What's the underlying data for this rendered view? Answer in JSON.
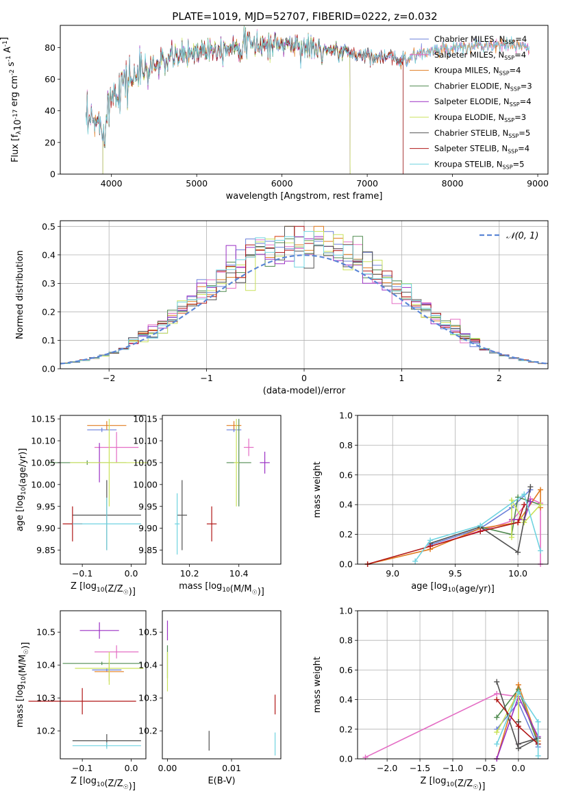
{
  "figure_title": "PLATE=1019, MJD=52707, FIBERID=0222, z=0.032",
  "colors": {
    "Chabrier MILES": "#6a7fd9",
    "Salpeter MILES": "#e46cc4",
    "Kroupa MILES": "#e07b1f",
    "Chabrier ELODIE": "#4f8a4f",
    "Salpeter ELODIE": "#9a2fc4",
    "Kroupa ELODIE": "#c9e25a",
    "Chabrier STELIB": "#505050",
    "Salpeter STELIB": "#b01515",
    "Kroupa STELIB": "#6fd3e0",
    "gauss": "#5b86d6"
  },
  "chart_data": [
    {
      "id": "spectrum",
      "type": "line",
      "xlabel": "wavelength [Angstrom, rest frame]",
      "ylabel": "Flux [f_λ10^-17 erg cm^-2 s^-1 A^-1]",
      "xlim": [
        3400,
        9120
      ],
      "ylim": [
        0,
        94
      ],
      "xticks": [
        4000,
        5000,
        6000,
        7000,
        8000,
        9000
      ],
      "yticks": [
        0,
        20,
        40,
        60,
        80
      ],
      "legend_position": "upper right",
      "series": [
        {
          "name": "Chabrier MILES",
          "nssp": "4",
          "x_range": [
            3700,
            8900
          ]
        },
        {
          "name": "Salpeter MILES",
          "nssp": "4",
          "x_range": [
            3700,
            8900
          ]
        },
        {
          "name": "Kroupa MILES",
          "nssp": "4",
          "x_range": [
            3700,
            8900
          ]
        },
        {
          "name": "Chabrier ELODIE",
          "nssp": "3",
          "x_range": [
            3900,
            6800
          ]
        },
        {
          "name": "Salpeter ELODIE",
          "nssp": "4",
          "x_range": [
            3900,
            6800
          ]
        },
        {
          "name": "Kroupa ELODIE",
          "nssp": "3",
          "x_range": [
            3900,
            6800
          ]
        },
        {
          "name": "Chabrier STELIB",
          "nssp": "5",
          "x_range": [
            3700,
            7420
          ]
        },
        {
          "name": "Salpeter STELIB",
          "nssp": "4",
          "x_range": [
            3700,
            7420
          ]
        },
        {
          "name": "Kroupa STELIB",
          "nssp": "5",
          "x_range": [
            3700,
            8900
          ]
        }
      ],
      "continuum": {
        "x": [
          3700,
          3800,
          3900,
          4000,
          4100,
          4300,
          4500,
          4700,
          4900,
          5100,
          5300,
          5500,
          5800,
          6100,
          6300,
          6500,
          6600,
          6700,
          7000,
          7200,
          7400,
          7600,
          7800,
          8000,
          8200,
          8400,
          8600,
          8900
        ],
        "y": [
          31,
          33,
          29,
          50,
          57,
          63,
          68,
          73,
          76,
          79,
          80,
          82,
          82,
          82,
          80,
          78,
          78,
          77,
          75,
          74,
          72,
          76,
          78,
          79,
          80,
          81,
          81,
          82
        ]
      }
    },
    {
      "id": "residuals",
      "type": "bar",
      "xlabel": "(data-model)/error",
      "ylabel": "Normed distribution",
      "xlim": [
        -2.5,
        2.5
      ],
      "ylim": [
        0,
        0.52
      ],
      "xticks": [
        -2,
        -1,
        0,
        1,
        2
      ],
      "yticks": [
        0.0,
        0.1,
        0.2,
        0.3,
        0.4,
        0.5
      ],
      "grid": true,
      "legend_position": "upper right",
      "gauss_label": "N(0,1)",
      "bin_width": 0.1
    },
    {
      "id": "age-vs-Z",
      "type": "scatter",
      "xlabel": "Z [log10(Z/Z_sun)]",
      "ylabel": "age  [log10(age/yr)]",
      "xlim": [
        -0.145,
        0.03
      ],
      "ylim": [
        9.818,
        10.158
      ],
      "xticks": [
        -0.1,
        0.0
      ],
      "yticks": [
        9.85,
        9.9,
        9.95,
        10.0,
        10.05,
        10.1,
        10.15
      ],
      "points": [
        {
          "s": "Chabrier MILES",
          "x": -0.06,
          "y": 10.125,
          "xerr": 0.03,
          "yerr": 0.005
        },
        {
          "s": "Salpeter MILES",
          "x": -0.03,
          "y": 10.085,
          "xerr": 0.045,
          "yerr": 0.035
        },
        {
          "s": "Kroupa MILES",
          "x": -0.05,
          "y": 10.135,
          "xerr": 0.04,
          "yerr": 0.01
        },
        {
          "s": "Chabrier ELODIE",
          "x": -0.09,
          "y": 10.05,
          "xerr": 0.08,
          "yerr": 0.005
        },
        {
          "s": "Salpeter ELODIE",
          "x": -0.065,
          "y": 10.05,
          "xerr": 0.002,
          "yerr": 0.045
        },
        {
          "s": "Kroupa ELODIE",
          "x": -0.045,
          "y": 10.05,
          "xerr": 0.08,
          "yerr": 0.1
        },
        {
          "s": "Chabrier STELIB",
          "x": -0.05,
          "y": 9.93,
          "xerr": 0.07,
          "yerr": 0.08
        },
        {
          "s": "Salpeter STELIB",
          "x": -0.12,
          "y": 9.91,
          "xerr": 0.02,
          "yerr": 0.04
        },
        {
          "s": "Kroupa STELIB",
          "x": -0.05,
          "y": 9.91,
          "xerr": 0.07,
          "yerr": 0.06
        }
      ]
    },
    {
      "id": "age-vs-mass",
      "type": "scatter",
      "xlabel": "mass [log10(M/M_sun)]",
      "ylabel": "",
      "xlim": [
        10.09,
        10.57
      ],
      "ylim": [
        9.818,
        10.158
      ],
      "xticks": [
        10.2,
        10.4
      ],
      "yticks": [
        9.85,
        9.9,
        9.95,
        10.0,
        10.05,
        10.1,
        10.15
      ],
      "points": [
        {
          "s": "Chabrier MILES",
          "x": 10.38,
          "y": 10.125,
          "xerr": 0.03,
          "yerr": 0.005
        },
        {
          "s": "Salpeter MILES",
          "x": 10.44,
          "y": 10.085,
          "xerr": 0.02,
          "yerr": 0.02
        },
        {
          "s": "Kroupa MILES",
          "x": 10.38,
          "y": 10.135,
          "xerr": 0.03,
          "yerr": 0.01
        },
        {
          "s": "Chabrier ELODIE",
          "x": 10.4,
          "y": 10.05,
          "xerr": 0.05,
          "yerr": 0.1
        },
        {
          "s": "Salpeter ELODIE",
          "x": 10.505,
          "y": 10.05,
          "xerr": 0.02,
          "yerr": 0.025
        },
        {
          "s": "Kroupa ELODIE",
          "x": 10.39,
          "y": 10.05,
          "xerr": 0.01,
          "yerr": 0.1
        },
        {
          "s": "Chabrier STELIB",
          "x": 10.17,
          "y": 9.93,
          "xerr": 0.02,
          "yerr": 0.08
        },
        {
          "s": "Salpeter STELIB",
          "x": 10.29,
          "y": 9.91,
          "xerr": 0.02,
          "yerr": 0.04
        },
        {
          "s": "Kroupa STELIB",
          "x": 10.15,
          "y": 9.91,
          "xerr": 0.01,
          "yerr": 0.07
        }
      ]
    },
    {
      "id": "weight-vs-age",
      "type": "line",
      "xlabel": "age  [log10(age/yr)]",
      "ylabel": "mass weight",
      "xlim": [
        8.72,
        10.24
      ],
      "ylim": [
        0,
        1.0
      ],
      "xticks": [
        9.0,
        9.5,
        10.0
      ],
      "yticks": [
        0.0,
        0.2,
        0.4,
        0.6,
        0.8,
        1.0
      ],
      "grid": true,
      "series": [
        {
          "s": "Chabrier MILES",
          "x": [
            9.3,
            9.7,
            9.95,
            10.1
          ],
          "y": [
            0.13,
            0.24,
            0.38,
            0.5
          ]
        },
        {
          "s": "Salpeter MILES",
          "x": [
            9.3,
            9.95,
            10.1,
            10.18,
            10.18
          ],
          "y": [
            0.12,
            0.29,
            0.44,
            0.41,
            0.0
          ]
        },
        {
          "s": "Kroupa MILES",
          "x": [
            8.8,
            9.3,
            9.7,
            10.0,
            10.18,
            10.18
          ],
          "y": [
            0.0,
            0.1,
            0.24,
            0.28,
            0.5,
            0.38
          ]
        },
        {
          "s": "Chabrier ELODIE",
          "x": [
            9.7,
            9.95,
            10.0,
            10.18
          ],
          "y": [
            0.25,
            0.2,
            0.45,
            0.4
          ]
        },
        {
          "s": "Salpeter ELODIE",
          "x": [
            9.95,
            10.05,
            10.1
          ],
          "y": [
            0.3,
            0.3,
            0.42
          ]
        },
        {
          "s": "Kroupa ELODIE",
          "x": [
            9.95,
            9.95,
            10.05,
            10.18
          ],
          "y": [
            0.18,
            0.43,
            0.28,
            0.4
          ]
        },
        {
          "s": "Chabrier STELIB",
          "x": [
            9.3,
            9.7,
            10.0,
            10.1
          ],
          "y": [
            0.14,
            0.25,
            0.08,
            0.52
          ]
        },
        {
          "s": "Salpeter STELIB",
          "x": [
            8.8,
            9.3,
            9.7,
            10.0,
            10.05
          ],
          "y": [
            0.0,
            0.12,
            0.22,
            0.28,
            0.4
          ]
        },
        {
          "s": "Kroupa STELIB",
          "x": [
            9.18,
            9.3,
            9.7,
            10.05,
            10.18
          ],
          "y": [
            0.02,
            0.16,
            0.26,
            0.47,
            0.09
          ]
        }
      ]
    },
    {
      "id": "mass-vs-Z",
      "type": "scatter",
      "xlabel": "Z [log10(Z/Z_sun)]",
      "ylabel": "mass [log10(M/M_sun)]",
      "xlim": [
        -0.145,
        0.03
      ],
      "ylim": [
        10.115,
        10.565
      ],
      "xticks": [
        -0.1,
        0.0
      ],
      "yticks": [
        10.2,
        10.3,
        10.4,
        10.5
      ],
      "points": [
        {
          "s": "Chabrier MILES",
          "x": -0.05,
          "y": 10.385,
          "xerr": 0.03,
          "yerr": 0.005
        },
        {
          "s": "Salpeter MILES",
          "x": -0.03,
          "y": 10.44,
          "xerr": 0.045,
          "yerr": 0.02
        },
        {
          "s": "Kroupa MILES",
          "x": -0.045,
          "y": 10.38,
          "xerr": 0.03,
          "yerr": 0.03
        },
        {
          "s": "Chabrier ELODIE",
          "x": -0.06,
          "y": 10.405,
          "xerr": 0.08,
          "yerr": 0.005
        },
        {
          "s": "Salpeter ELODIE",
          "x": -0.065,
          "y": 10.505,
          "xerr": 0.04,
          "yerr": 0.025
        },
        {
          "s": "Kroupa ELODIE",
          "x": -0.045,
          "y": 10.39,
          "xerr": 0.07,
          "yerr": 0.05
        },
        {
          "s": "Chabrier STELIB",
          "x": -0.05,
          "y": 10.17,
          "xerr": 0.07,
          "yerr": 0.02
        },
        {
          "s": "Salpeter STELIB",
          "x": -0.1,
          "y": 10.29,
          "xerr": 0.11,
          "yerr": 0.04
        },
        {
          "s": "Kroupa STELIB",
          "x": -0.05,
          "y": 10.155,
          "xerr": 0.07,
          "yerr": 0.01
        }
      ]
    },
    {
      "id": "mass-vs-EBV",
      "type": "scatter",
      "xlabel": "E(B-V)",
      "ylabel": "",
      "xlim": [
        -0.0008,
        0.0177
      ],
      "ylim": [
        10.115,
        10.565
      ],
      "xticks": [
        0.0,
        0.01
      ],
      "yticks": [
        10.2,
        10.3,
        10.4,
        10.5
      ],
      "points": [
        {
          "s": "Salpeter ELODIE",
          "x": 0.0,
          "y": 10.505,
          "xerr": 0.0,
          "yerr": 0.03
        },
        {
          "s": "Chabrier ELODIE",
          "x": 0.0,
          "y": 10.41,
          "xerr": 0.0,
          "yerr": 0.05
        },
        {
          "s": "Kroupa ELODIE",
          "x": 0.0,
          "y": 10.38,
          "xerr": 0.0,
          "yerr": 0.06
        },
        {
          "s": "Chabrier STELIB",
          "x": 0.0065,
          "y": 10.17,
          "xerr": 0.0,
          "yerr": 0.03
        },
        {
          "s": "Salpeter STELIB",
          "x": 0.0168,
          "y": 10.28,
          "xerr": 0.0,
          "yerr": 0.03
        },
        {
          "s": "Kroupa STELIB",
          "x": 0.0168,
          "y": 10.16,
          "xerr": 0.0,
          "yerr": 0.035
        }
      ]
    },
    {
      "id": "weight-vs-Z",
      "type": "line",
      "xlabel": "Z [log10(Z/Z_sun)]",
      "ylabel": "mass weight",
      "xlim": [
        -2.45,
        0.45
      ],
      "ylim": [
        0,
        1.0
      ],
      "xticks": [
        -2.0,
        -1.5,
        -1.0,
        -0.5,
        0.0
      ],
      "yticks": [
        0.0,
        0.2,
        0.4,
        0.6,
        0.8,
        1.0
      ],
      "grid": true,
      "series": [
        {
          "s": "Chabrier MILES",
          "x": [
            -0.33,
            0.0,
            0.3
          ],
          "y": [
            0.2,
            0.38,
            0.08
          ]
        },
        {
          "s": "Salpeter MILES",
          "x": [
            -2.33,
            -0.33,
            0.0,
            0.0
          ],
          "y": [
            0.01,
            0.44,
            0.42,
            0.1
          ]
        },
        {
          "s": "Kroupa MILES",
          "x": [
            -0.33,
            0.0,
            0.3
          ],
          "y": [
            0.0,
            0.5,
            0.12
          ]
        },
        {
          "s": "Chabrier ELODIE",
          "x": [
            -0.33,
            0.0,
            0.3
          ],
          "y": [
            0.28,
            0.47,
            0.1
          ]
        },
        {
          "s": "Salpeter ELODIE",
          "x": [
            -0.33,
            0.0,
            0.3
          ],
          "y": [
            0.0,
            0.42,
            0.15
          ]
        },
        {
          "s": "Kroupa ELODIE",
          "x": [
            -0.33,
            0.0,
            0.0
          ],
          "y": [
            0.18,
            0.45,
            0.25
          ]
        },
        {
          "s": "Chabrier STELIB",
          "x": [
            -0.33,
            0.0,
            0.3,
            0.0,
            0.0
          ],
          "y": [
            0.52,
            0.07,
            0.14,
            0.1,
            0.25
          ]
        },
        {
          "s": "Salpeter STELIB",
          "x": [
            -0.33,
            0.0,
            0.3
          ],
          "y": [
            0.4,
            0.22,
            0.1
          ]
        },
        {
          "s": "Kroupa STELIB",
          "x": [
            -0.33,
            0.0,
            0.3,
            0.3
          ],
          "y": [
            0.1,
            0.45,
            0.25,
            0.02
          ]
        }
      ]
    }
  ]
}
